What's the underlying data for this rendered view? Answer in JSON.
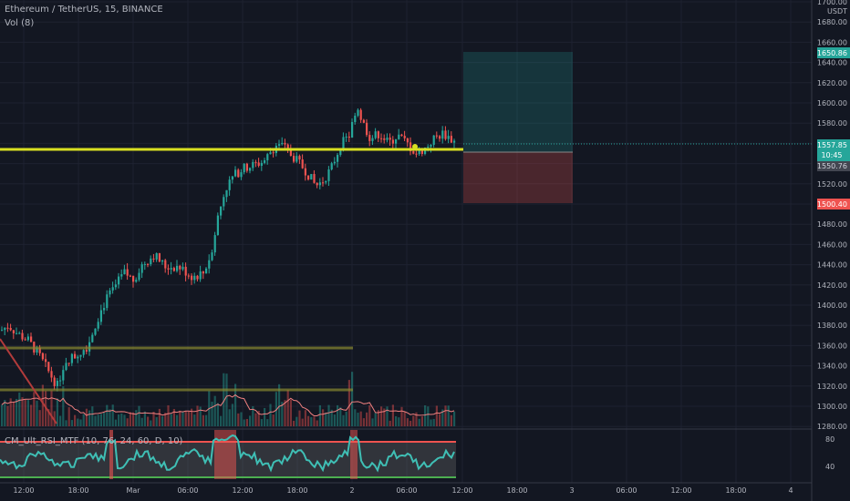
{
  "header": {
    "symbol_title": "Ethereum / TetherUS, 15, BINANCE",
    "volume_label": "Vol (8)"
  },
  "indicator": {
    "label": "CM_Ult_RSI_MTF (10, 76, 24, 60, D, 10)",
    "axis": [
      "80",
      "40"
    ]
  },
  "price_axis": {
    "unit": "USDT",
    "labels": [
      "1700.00",
      "1680.00",
      "1660.00",
      "1640.00",
      "1620.00",
      "1600.00",
      "1580.00",
      "1560.00",
      "1540.00",
      "1520.00",
      "1500.00",
      "1480.00",
      "1460.00",
      "1440.00",
      "1420.00",
      "1400.00",
      "1380.00",
      "1360.00",
      "1340.00",
      "1320.00",
      "1300.00",
      "1280.00"
    ],
    "tags": {
      "target": "1650.86",
      "current": "1557.85",
      "countdown": "10:45",
      "entry": "1550.76",
      "stop": "1500.40"
    }
  },
  "time_axis": [
    "12:00",
    "18:00",
    "Mar",
    "06:00",
    "12:00",
    "18:00",
    "2",
    "06:00",
    "12:00",
    "18:00",
    "3",
    "06:00",
    "12:00",
    "18:00",
    "4"
  ],
  "colors": {
    "background": "#131722",
    "grid": "#1e2230",
    "up": "#26a69a",
    "down": "#ef5350",
    "support_line": "#d9e021",
    "target_zone": "#1a4a4a",
    "stop_zone": "#4a2028",
    "rsi_line": "#3fbfb5",
    "target_tag": "#26a69a",
    "stop_tag": "#ef5350"
  }
}
